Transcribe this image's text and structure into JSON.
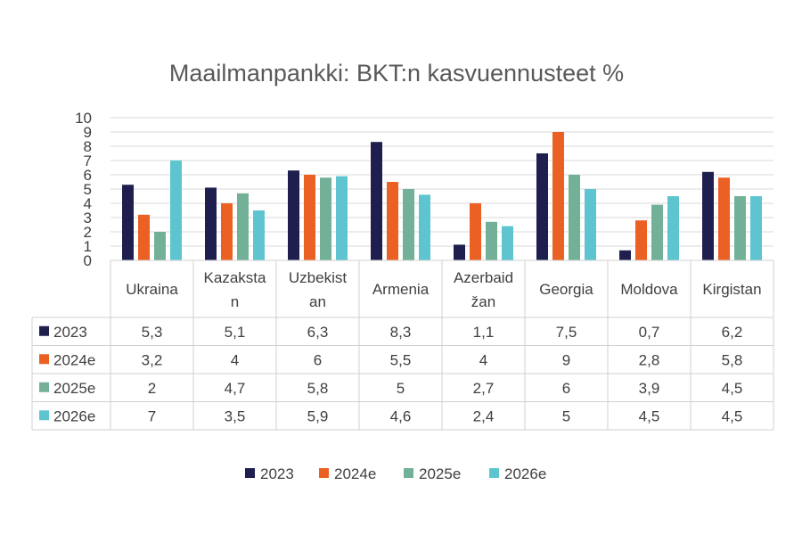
{
  "chart_data": {
    "type": "bar",
    "title": "Maailmanpankki: BKT:n kasvuennusteet %",
    "categories": [
      [
        "Ukraina"
      ],
      [
        "Kazaksta",
        "n"
      ],
      [
        "Uzbekist",
        "an"
      ],
      [
        "Armenia"
      ],
      [
        "Azerbaid",
        "žan"
      ],
      [
        "Georgia"
      ],
      [
        "Moldova"
      ],
      [
        "Kirgistan"
      ]
    ],
    "series": [
      {
        "name": "2023",
        "color": "#1f1f4f",
        "values": [
          5.3,
          5.1,
          6.3,
          8.3,
          1.1,
          7.5,
          0.7,
          6.2
        ],
        "labels": [
          "5,3",
          "5,1",
          "6,3",
          "8,3",
          "1,1",
          "7,5",
          "0,7",
          "6,2"
        ]
      },
      {
        "name": "2024e",
        "color": "#eb6123",
        "values": [
          3.2,
          4,
          6,
          5.5,
          4,
          9,
          2.8,
          5.8
        ],
        "labels": [
          "3,2",
          "4",
          "6",
          "5,5",
          "4",
          "9",
          "2,8",
          "5,8"
        ]
      },
      {
        "name": "2025e",
        "color": "#72b197",
        "values": [
          2,
          4.7,
          5.8,
          5,
          2.7,
          6,
          3.9,
          4.5
        ],
        "labels": [
          "2",
          "4,7",
          "5,8",
          "5",
          "2,7",
          "6",
          "3,9",
          "4,5"
        ]
      },
      {
        "name": "2026e",
        "color": "#5ec5d0",
        "values": [
          7,
          3.5,
          5.9,
          4.6,
          2.4,
          5,
          4.5,
          4.5
        ],
        "labels": [
          "7",
          "3,5",
          "5,9",
          "4,6",
          "2,4",
          "5",
          "4,5",
          "4,5"
        ]
      }
    ],
    "y_ticks": [
      "0",
      "1",
      "2",
      "3",
      "4",
      "5",
      "6",
      "7",
      "8",
      "9",
      "10"
    ],
    "ylim": [
      0,
      10
    ],
    "grid": true,
    "legend_position": "bottom",
    "data_table": true
  }
}
